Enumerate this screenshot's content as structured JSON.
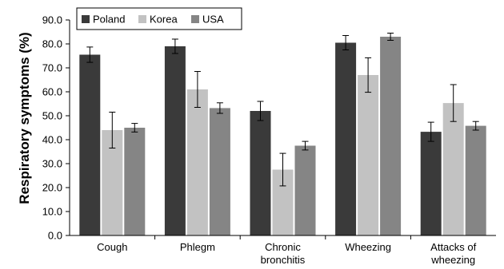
{
  "chart_data": {
    "type": "bar",
    "title": "",
    "xlabel": "",
    "ylabel": "Respiratory symptoms (%)",
    "ylim": [
      0,
      90
    ],
    "yticks": [
      "0.0",
      "10.0",
      "20.0",
      "30.0",
      "40.0",
      "50.0",
      "60.0",
      "70.0",
      "80.0",
      "90.0"
    ],
    "categories": [
      [
        "Cough"
      ],
      [
        "Phlegm"
      ],
      [
        "Chronic",
        "bronchitis"
      ],
      [
        "Wheezing"
      ],
      [
        "Attacks",
        "of",
        "wheezing"
      ]
    ],
    "category_lines": [
      [
        "Cough"
      ],
      [
        "Phlegm"
      ],
      [
        "Chronic",
        "bronchitis"
      ],
      [
        "Wheezing"
      ],
      [
        "Attacks of",
        "wheezing"
      ]
    ],
    "legend_position": "top-left",
    "grid": false,
    "error_bars": true,
    "series": [
      {
        "name": "Poland",
        "color": "#3a3a3a",
        "values": [
          75.5,
          79.0,
          52.0,
          80.5,
          43.3
        ],
        "errors": [
          3.2,
          3.0,
          4.0,
          3.0,
          4.0
        ]
      },
      {
        "name": "Korea",
        "color": "#c2c2c2",
        "values": [
          44.0,
          61.0,
          27.5,
          67.0,
          55.3
        ],
        "errors": [
          7.5,
          7.5,
          6.8,
          7.2,
          7.7
        ]
      },
      {
        "name": "USA",
        "color": "#858585",
        "values": [
          45.0,
          53.2,
          37.5,
          83.0,
          45.8
        ],
        "errors": [
          1.8,
          2.2,
          1.8,
          1.5,
          1.8
        ]
      }
    ]
  }
}
